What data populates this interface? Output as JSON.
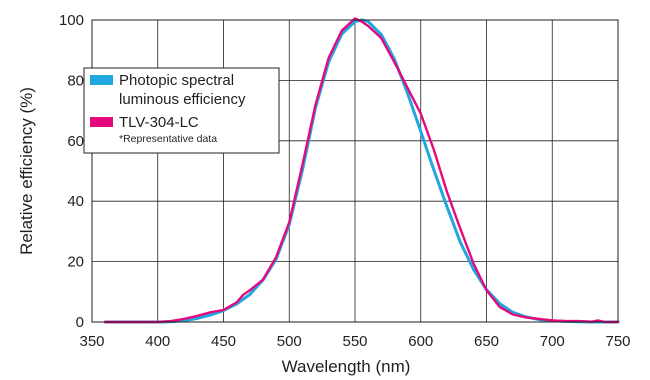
{
  "chart_data": {
    "type": "line",
    "title": "",
    "xlabel": "Wavelength (nm)",
    "ylabel": "Relative efficiency (%)",
    "xlim": [
      350,
      750
    ],
    "ylim": [
      0,
      100
    ],
    "xticks": [
      "350",
      "400",
      "450",
      "500",
      "550",
      "600",
      "650",
      "700",
      "750"
    ],
    "yticks": [
      "0",
      "20",
      "40",
      "60",
      "80",
      "100"
    ],
    "grid": true,
    "legend_position": "upper-left",
    "legend_note": "*Representative data",
    "series": [
      {
        "name": "Photopic spectral luminous efficiency",
        "legend_lines": [
          "Photopic spectral",
          "luminous efficiency"
        ],
        "color": "#1fa8e0",
        "x": [
          360,
          380,
          400,
          410,
          420,
          430,
          440,
          450,
          460,
          470,
          480,
          490,
          500,
          510,
          520,
          530,
          540,
          550,
          555,
          560,
          570,
          580,
          590,
          600,
          610,
          620,
          630,
          640,
          650,
          660,
          670,
          680,
          690,
          700,
          710,
          720,
          730,
          740,
          750
        ],
        "y": [
          0,
          0,
          0,
          0.1,
          0.4,
          1.2,
          2.3,
          3.8,
          6,
          9.1,
          13.9,
          20.8,
          32.3,
          50.3,
          71,
          86.2,
          95.4,
          99.5,
          100,
          99.5,
          95.2,
          87,
          75.7,
          63.1,
          50.3,
          38.1,
          26.5,
          17.5,
          10.7,
          6.1,
          3.2,
          1.7,
          0.8,
          0.4,
          0.2,
          0.1,
          0,
          0,
          0
        ]
      },
      {
        "name": "TLV-304-LC",
        "legend_lines": [
          "TLV-304-LC"
        ],
        "color": "#e6097e",
        "x": [
          360,
          380,
          400,
          410,
          420,
          430,
          440,
          445,
          450,
          460,
          465,
          470,
          480,
          490,
          500,
          510,
          520,
          530,
          540,
          550,
          555,
          560,
          570,
          580,
          590,
          600,
          610,
          620,
          630,
          640,
          650,
          660,
          670,
          680,
          690,
          700,
          710,
          720,
          730,
          735,
          740,
          750
        ],
        "y": [
          0,
          0,
          0,
          0.3,
          1,
          2,
          3.2,
          3.6,
          4,
          6.5,
          9,
          10.5,
          14,
          21.5,
          33,
          52,
          72,
          87.5,
          96.5,
          100.5,
          99.5,
          98,
          94,
          86,
          77.5,
          69,
          57,
          43,
          31,
          19.5,
          10.5,
          5,
          2.5,
          1.5,
          1,
          0.5,
          0.3,
          0.3,
          0.1,
          0.5,
          0,
          0
        ]
      }
    ]
  }
}
